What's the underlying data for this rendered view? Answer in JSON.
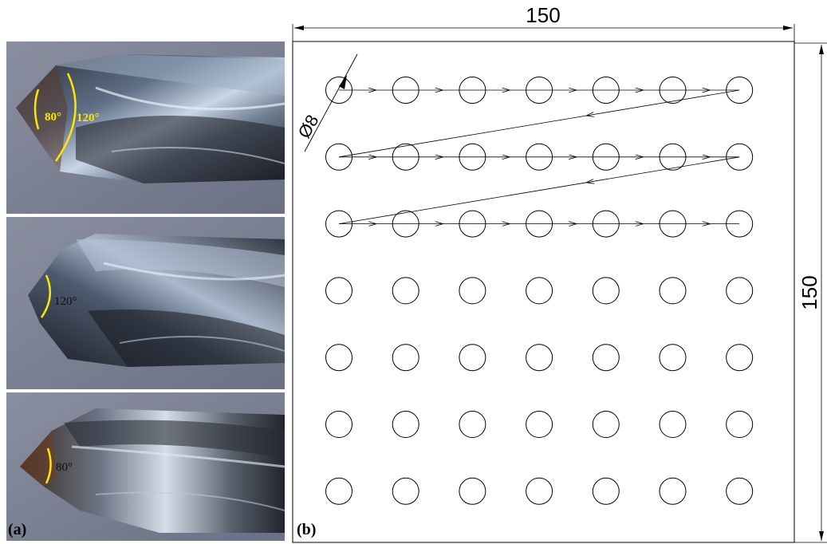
{
  "panel_a": {
    "label": "(a)",
    "drills": [
      {
        "angles": [
          "80°",
          "120°"
        ]
      },
      {
        "angles": [
          "120°"
        ]
      },
      {
        "angles": [
          "80°"
        ]
      }
    ],
    "angle_color": "#ffe600",
    "background_color": "#7d8396"
  },
  "panel_b": {
    "label": "(b)",
    "width_dimension": "150",
    "height_dimension": "150",
    "hole_diameter_label": "Ø8",
    "hole_grid": {
      "rows": 7,
      "columns": 7
    },
    "drilling_path": "row-by-row, left to right, returning diagonally to the start of the next row (first 3 rows)",
    "path_rows": 3
  }
}
